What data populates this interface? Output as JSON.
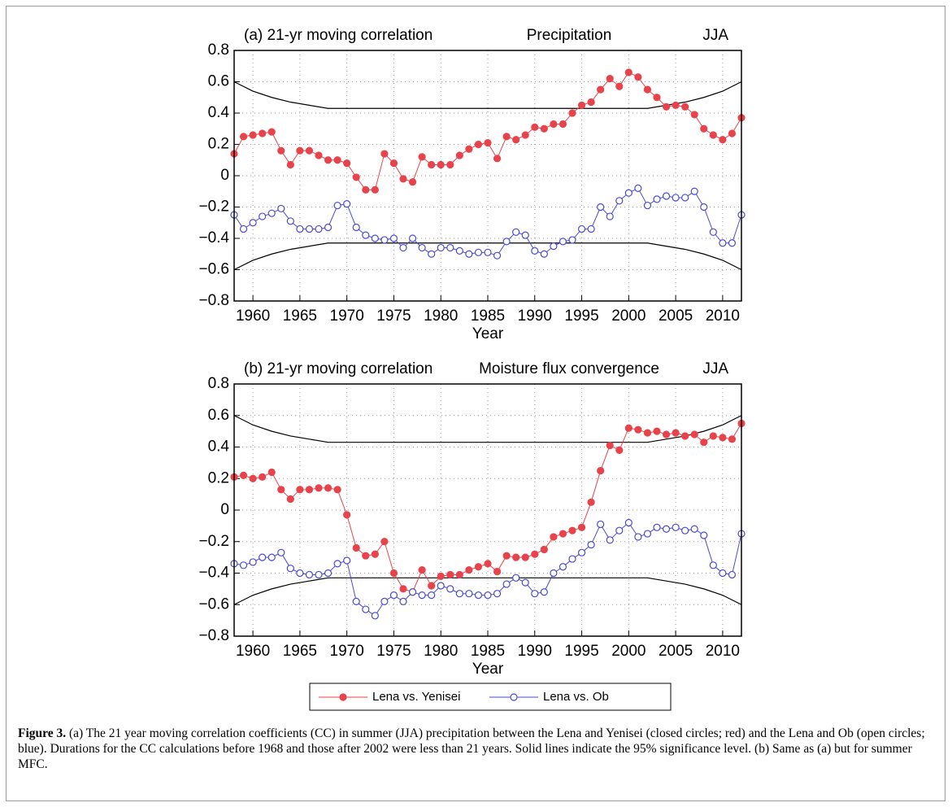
{
  "chart_data": [
    {
      "type": "line",
      "title": "(a) 21-yr moving correlation",
      "subtitle": "Precipitation",
      "annotation": "JJA",
      "xlabel": "Year",
      "x": [
        1958,
        1959,
        1960,
        1961,
        1962,
        1963,
        1964,
        1965,
        1966,
        1967,
        1968,
        1969,
        1970,
        1971,
        1972,
        1973,
        1974,
        1975,
        1976,
        1977,
        1978,
        1979,
        1980,
        1981,
        1982,
        1983,
        1984,
        1985,
        1986,
        1987,
        1988,
        1989,
        1990,
        1991,
        1992,
        1993,
        1994,
        1995,
        1996,
        1997,
        1998,
        1999,
        2000,
        2001,
        2002,
        2003,
        2004,
        2005,
        2006,
        2007,
        2008,
        2009,
        2010,
        2011,
        2012
      ],
      "series": [
        {
          "name": "Lena vs. Yenisei",
          "color": "#e8434a",
          "marker": "filled",
          "values": [
            0.14,
            0.25,
            0.26,
            0.27,
            0.28,
            0.16,
            0.07,
            0.16,
            0.16,
            0.13,
            0.1,
            0.1,
            0.08,
            -0.01,
            -0.09,
            -0.09,
            0.14,
            0.08,
            -0.02,
            -0.04,
            0.12,
            0.07,
            0.07,
            0.07,
            0.13,
            0.17,
            0.2,
            0.21,
            0.11,
            0.25,
            0.23,
            0.26,
            0.31,
            0.3,
            0.33,
            0.33,
            0.4,
            0.45,
            0.47,
            0.55,
            0.62,
            0.57,
            0.66,
            0.63,
            0.55,
            0.5,
            0.44,
            0.45,
            0.44,
            0.39,
            0.3,
            0.26,
            0.23,
            0.27,
            0.37
          ]
        },
        {
          "name": "Lena vs. Ob",
          "color": "#4a4ad0",
          "marker": "open",
          "values": [
            -0.25,
            -0.34,
            -0.3,
            -0.26,
            -0.24,
            -0.21,
            -0.29,
            -0.34,
            -0.34,
            -0.34,
            -0.33,
            -0.19,
            -0.18,
            -0.33,
            -0.38,
            -0.4,
            -0.41,
            -0.4,
            -0.46,
            -0.4,
            -0.46,
            -0.5,
            -0.46,
            -0.46,
            -0.48,
            -0.5,
            -0.49,
            -0.49,
            -0.51,
            -0.42,
            -0.36,
            -0.38,
            -0.48,
            -0.5,
            -0.45,
            -0.42,
            -0.41,
            -0.34,
            -0.34,
            -0.2,
            -0.26,
            -0.16,
            -0.11,
            -0.08,
            -0.19,
            -0.15,
            -0.13,
            -0.14,
            -0.14,
            -0.1,
            -0.2,
            -0.36,
            -0.43,
            -0.43,
            -0.25
          ]
        }
      ],
      "significance": {
        "color": "#000000",
        "x": [
          1958,
          1960,
          1962,
          1964,
          1966,
          1968,
          2002,
          2004,
          2006,
          2008,
          2010,
          2012
        ],
        "upper": [
          0.6,
          0.54,
          0.5,
          0.47,
          0.45,
          0.43,
          0.43,
          0.45,
          0.47,
          0.5,
          0.54,
          0.6
        ],
        "lower": [
          -0.6,
          -0.54,
          -0.5,
          -0.47,
          -0.45,
          -0.43,
          -0.43,
          -0.45,
          -0.47,
          -0.5,
          -0.54,
          -0.6
        ]
      },
      "xlim": [
        1958,
        2012
      ],
      "xticks": [
        1960,
        1965,
        1970,
        1975,
        1980,
        1985,
        1990,
        1995,
        2000,
        2005,
        2010
      ],
      "ylim": [
        -0.8,
        0.8
      ],
      "yticks": [
        {
          "value": -0.8,
          "label": "−0.8"
        },
        {
          "value": -0.6,
          "label": "−0.6"
        },
        {
          "value": -0.4,
          "label": "−0.4"
        },
        {
          "value": -0.2,
          "label": "−0.2"
        },
        0,
        0.2,
        0.4,
        0.6,
        0.8
      ],
      "grid": true
    },
    {
      "type": "line",
      "title": "(b) 21-yr moving correlation",
      "subtitle": "Moisture flux convergence",
      "annotation": "JJA",
      "xlabel": "Year",
      "x": [
        1958,
        1959,
        1960,
        1961,
        1962,
        1963,
        1964,
        1965,
        1966,
        1967,
        1968,
        1969,
        1970,
        1971,
        1972,
        1973,
        1974,
        1975,
        1976,
        1977,
        1978,
        1979,
        1980,
        1981,
        1982,
        1983,
        1984,
        1985,
        1986,
        1987,
        1988,
        1989,
        1990,
        1991,
        1992,
        1993,
        1994,
        1995,
        1996,
        1997,
        1998,
        1999,
        2000,
        2001,
        2002,
        2003,
        2004,
        2005,
        2006,
        2007,
        2008,
        2009,
        2010,
        2011,
        2012
      ],
      "series": [
        {
          "color": "#e8434a",
          "marker": "filled",
          "values": [
            0.21,
            0.22,
            0.2,
            0.21,
            0.24,
            0.13,
            0.07,
            0.13,
            0.13,
            0.14,
            0.14,
            0.13,
            -0.03,
            -0.24,
            -0.29,
            -0.28,
            -0.2,
            -0.4,
            -0.5,
            -0.52,
            -0.38,
            -0.48,
            -0.42,
            -0.41,
            -0.41,
            -0.38,
            -0.36,
            -0.34,
            -0.39,
            -0.29,
            -0.3,
            -0.3,
            -0.28,
            -0.25,
            -0.17,
            -0.15,
            -0.13,
            -0.11,
            0.05,
            0.25,
            0.41,
            0.38,
            0.52,
            0.51,
            0.49,
            0.5,
            0.48,
            0.49,
            0.47,
            0.48,
            0.43,
            0.47,
            0.46,
            0.45,
            0.55
          ]
        },
        {
          "color": "#4a4ad0",
          "marker": "open",
          "values": [
            -0.34,
            -0.35,
            -0.33,
            -0.3,
            -0.3,
            -0.27,
            -0.37,
            -0.4,
            -0.41,
            -0.41,
            -0.4,
            -0.34,
            -0.32,
            -0.58,
            -0.63,
            -0.67,
            -0.58,
            -0.54,
            -0.58,
            -0.52,
            -0.54,
            -0.54,
            -0.48,
            -0.5,
            -0.53,
            -0.53,
            -0.54,
            -0.54,
            -0.53,
            -0.47,
            -0.43,
            -0.46,
            -0.53,
            -0.52,
            -0.4,
            -0.36,
            -0.31,
            -0.27,
            -0.22,
            -0.09,
            -0.19,
            -0.13,
            -0.08,
            -0.17,
            -0.15,
            -0.11,
            -0.12,
            -0.11,
            -0.13,
            -0.12,
            -0.16,
            -0.35,
            -0.4,
            -0.41,
            -0.15
          ]
        }
      ],
      "significance": {
        "color": "#000000",
        "x": [
          1958,
          1960,
          1962,
          1964,
          1966,
          1968,
          2002,
          2004,
          2006,
          2008,
          2010,
          2012
        ],
        "upper": [
          0.6,
          0.54,
          0.5,
          0.47,
          0.45,
          0.43,
          0.43,
          0.45,
          0.47,
          0.5,
          0.54,
          0.6
        ],
        "lower": [
          -0.6,
          -0.54,
          -0.5,
          -0.47,
          -0.45,
          -0.43,
          -0.43,
          -0.45,
          -0.47,
          -0.5,
          -0.54,
          -0.6
        ]
      },
      "xlim": [
        1958,
        2012
      ],
      "xticks": [
        1960,
        1965,
        1970,
        1975,
        1980,
        1985,
        1990,
        1995,
        2000,
        2005,
        2010
      ],
      "ylim": [
        -0.8,
        0.8
      ],
      "yticks": [
        {
          "value": -0.8,
          "label": "−0.8"
        },
        {
          "value": -0.6,
          "label": "−0.6"
        },
        {
          "value": -0.4,
          "label": "−0.4"
        },
        {
          "value": -0.2,
          "label": "−0.2"
        },
        0,
        0.2,
        0.4,
        0.6,
        0.8
      ],
      "grid": true
    }
  ],
  "caption": {
    "label": "Figure 3.",
    "text": " (a) The 21 year moving correlation coefficients (CC) in summer (JJA) precipitation between the Lena and Yenisei (closed circles; red) and the Lena and Ob (open circles; blue). Durations for the CC calculations before 1968 and those after 2002 were less than 21 years. Solid lines indicate the 95% significance level. (b) Same as (a) but for summer MFC."
  }
}
